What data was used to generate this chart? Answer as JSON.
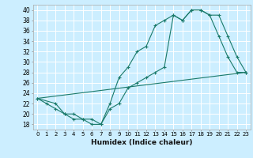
{
  "xlabel": "Humidex (Indice chaleur)",
  "bg_color": "#cceeff",
  "line_color": "#1a7a6a",
  "grid_color": "#ffffff",
  "xlim": [
    -0.5,
    23.5
  ],
  "ylim": [
    17,
    41
  ],
  "xticks": [
    0,
    1,
    2,
    3,
    4,
    5,
    6,
    7,
    8,
    9,
    10,
    11,
    12,
    13,
    14,
    15,
    16,
    17,
    18,
    19,
    20,
    21,
    22,
    23
  ],
  "yticks": [
    18,
    20,
    22,
    24,
    26,
    28,
    30,
    32,
    34,
    36,
    38,
    40
  ],
  "line1_x": [
    0,
    1,
    2,
    3,
    4,
    5,
    6,
    7,
    8,
    9,
    10,
    11,
    12,
    13,
    14,
    15,
    16,
    17,
    18,
    19,
    20,
    21,
    22,
    23
  ],
  "line1_y": [
    23,
    22,
    21,
    20,
    19,
    19,
    18,
    18,
    22,
    27,
    29,
    32,
    33,
    37,
    38,
    39,
    38,
    40,
    40,
    39,
    35,
    31,
    28,
    28
  ],
  "line2_x": [
    0,
    23
  ],
  "line2_y": [
    23,
    28
  ],
  "line3_x": [
    0,
    2,
    3,
    4,
    5,
    6,
    7,
    8,
    9,
    10,
    11,
    12,
    13,
    14,
    15,
    16,
    17,
    18,
    19,
    20,
    21,
    22,
    23
  ],
  "line3_y": [
    23,
    22,
    20,
    20,
    19,
    19,
    18,
    21,
    22,
    25,
    26,
    27,
    28,
    29,
    39,
    38,
    40,
    40,
    39,
    39,
    35,
    31,
    28
  ]
}
